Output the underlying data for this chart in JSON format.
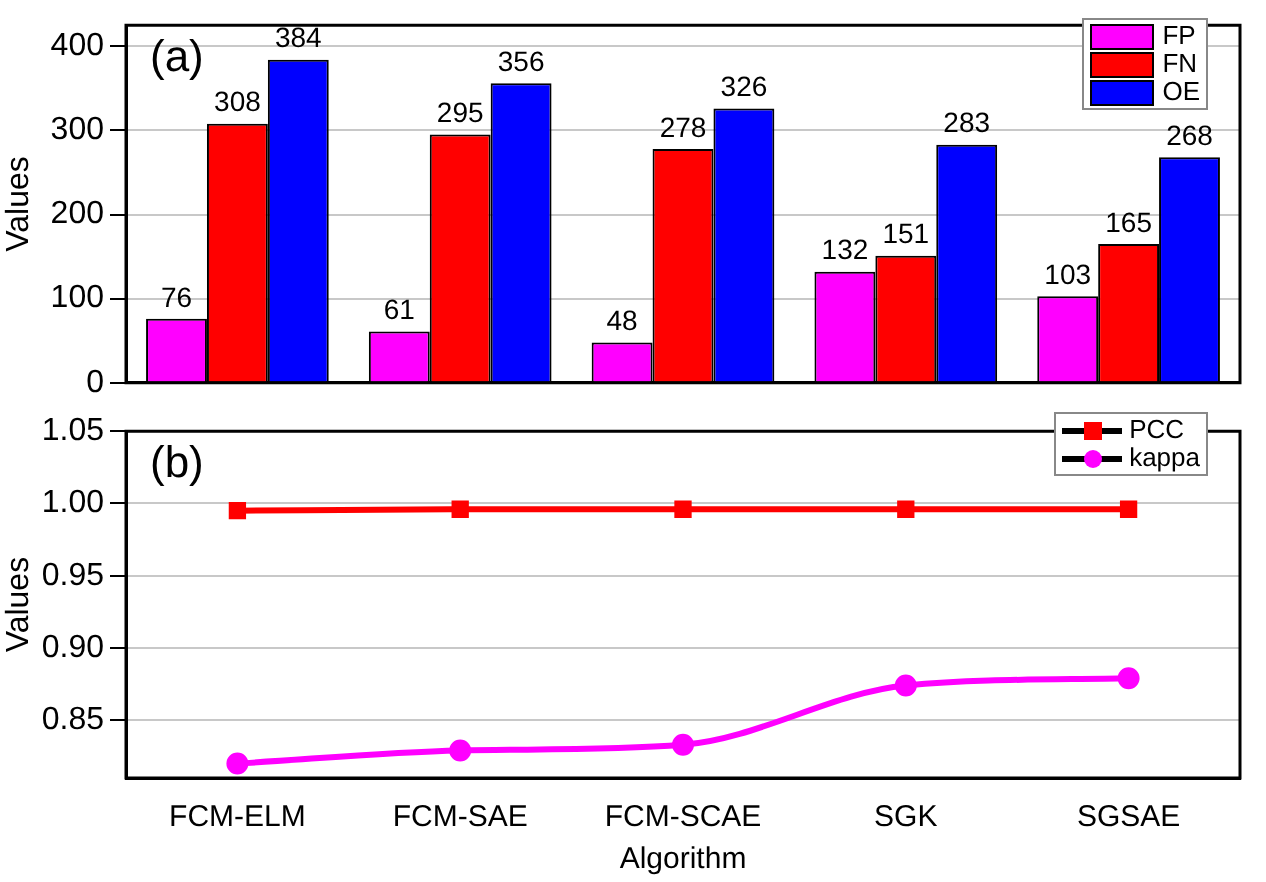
{
  "chart_data": [
    {
      "type": "bar",
      "annotations": [
        "(a)"
      ],
      "ylabel": "Values",
      "categories": [
        null,
        null,
        null,
        null,
        null
      ],
      "series": [
        {
          "name": "FP",
          "color": "#ff00ff",
          "values": [
            76,
            61,
            48,
            132,
            103
          ]
        },
        {
          "name": "FN",
          "color": "#ff0000",
          "values": [
            308,
            295,
            278,
            151,
            165
          ]
        },
        {
          "name": "OE",
          "color": "#0000ff",
          "values": [
            384,
            356,
            326,
            283,
            268
          ]
        }
      ],
      "ylim": [
        0,
        425
      ],
      "yticks": [
        0,
        100,
        200,
        300,
        400
      ],
      "grid": "y",
      "legend": "top right",
      "data_labels": true,
      "tick_labels": "y"
    },
    {
      "type": "line",
      "annotations": [
        "(b)"
      ],
      "xlabel": "Algorithm",
      "ylabel": "Values",
      "categories": [
        "FCM-ELM",
        "FCM-SAE",
        "FCM-SCAE",
        "SGK",
        "SGSAE"
      ],
      "series": [
        {
          "name": "PCC",
          "color": "#ff0000",
          "marker": "square",
          "values": [
            0.995,
            0.996,
            0.996,
            0.996,
            0.996
          ]
        },
        {
          "name": "kappa",
          "color": "#ff00ff",
          "marker": "circle",
          "values": [
            0.82,
            0.829,
            0.833,
            0.874,
            0.879
          ]
        }
      ],
      "ylim": [
        0.81,
        1.05
      ],
      "yticks": [
        {
          "value": 0.85,
          "label": "0.85"
        },
        {
          "value": 0.9,
          "label": "0.90"
        },
        {
          "value": 0.95,
          "label": "0.95"
        },
        {
          "value": 1,
          "label": "1.00"
        },
        {
          "value": 1.05,
          "label": "1.05"
        }
      ],
      "grid": "y",
      "legend": "top right"
    }
  ]
}
